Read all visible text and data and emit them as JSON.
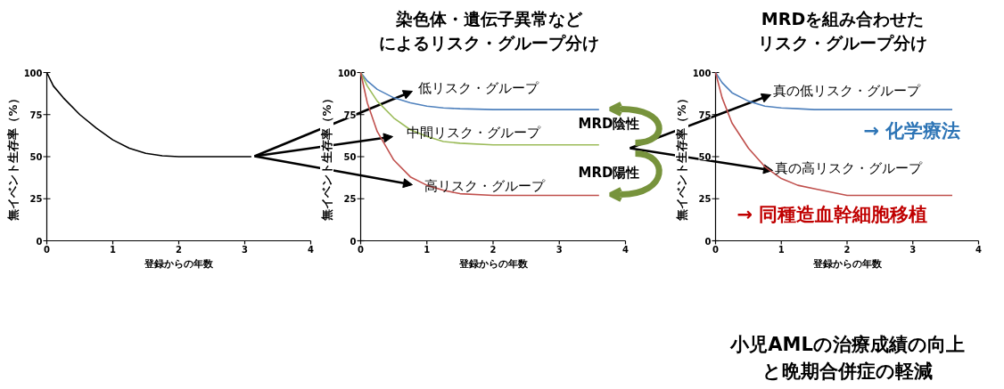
{
  "chart_data": [
    {
      "type": "line",
      "xlabel": "登録からの年数",
      "ylabel": "無イベント生存率（%）",
      "xlim": [
        0,
        4
      ],
      "ylim": [
        0,
        100
      ],
      "xticks": [
        0,
        1,
        2,
        3,
        4
      ],
      "yticks": [
        0,
        25,
        50,
        75,
        100
      ],
      "x": [
        0,
        0.1,
        0.25,
        0.5,
        0.75,
        1,
        1.25,
        1.5,
        1.75,
        2,
        3.1
      ],
      "series": [
        {
          "color": "#000000",
          "values": [
            100,
            92,
            85,
            75,
            67,
            60,
            55,
            52,
            50.5,
            50,
            50
          ]
        }
      ]
    },
    {
      "type": "line",
      "title": "染色体・遺伝子異常などによるリスク・グループ分け",
      "xlabel": "登録からの年数",
      "ylabel": "無イベント生存率（%）",
      "xlim": [
        0,
        4
      ],
      "ylim": [
        0,
        100
      ],
      "xticks": [
        0,
        1,
        2,
        3,
        4
      ],
      "yticks": [
        0,
        25,
        50,
        75,
        100
      ],
      "x": [
        0,
        0.1,
        0.25,
        0.5,
        0.75,
        1,
        1.25,
        1.5,
        2,
        3.6
      ],
      "series": [
        {
          "name": "低リスク・グループ",
          "color": "#4f81bd",
          "values": [
            100,
            95,
            90,
            85,
            82,
            80,
            79,
            78.5,
            78,
            78
          ]
        },
        {
          "name": "中間リスク・グループ",
          "color": "#9bbb59",
          "values": [
            100,
            92,
            83,
            73,
            66,
            62,
            59,
            58,
            57,
            57
          ]
        },
        {
          "name": "高リスク・グループ",
          "color": "#c0504d",
          "values": [
            100,
            82,
            65,
            48,
            38,
            33,
            30,
            28,
            27,
            27
          ]
        }
      ],
      "annotations": [
        "MRD陰性",
        "MRD陽性"
      ]
    },
    {
      "type": "line",
      "title": "MRDを組み合わせたリスク・グループ分け",
      "xlabel": "登録からの年数",
      "ylabel": "無イベント生存率（%）",
      "xlim": [
        0,
        4
      ],
      "ylim": [
        0,
        100
      ],
      "xticks": [
        0,
        1,
        2,
        3,
        4
      ],
      "yticks": [
        0,
        25,
        50,
        75,
        100
      ],
      "x": [
        0,
        0.1,
        0.25,
        0.5,
        0.75,
        1,
        1.25,
        1.5,
        2,
        3.6
      ],
      "series": [
        {
          "name": "真の低リスク・グループ",
          "color": "#4f81bd",
          "values": [
            100,
            94,
            88,
            83,
            80,
            79,
            78.5,
            78,
            78,
            78
          ]
        },
        {
          "name": "真の高リスク・グループ",
          "color": "#c0504d",
          "values": [
            100,
            85,
            70,
            55,
            44,
            37,
            33,
            31,
            27,
            27
          ]
        }
      ],
      "annotations": [
        "→ 化学療法",
        "→ 同種造血幹細胞移植",
        "小児AMLの治療成績の向上と晩期合併症の軽減"
      ]
    }
  ]
}
